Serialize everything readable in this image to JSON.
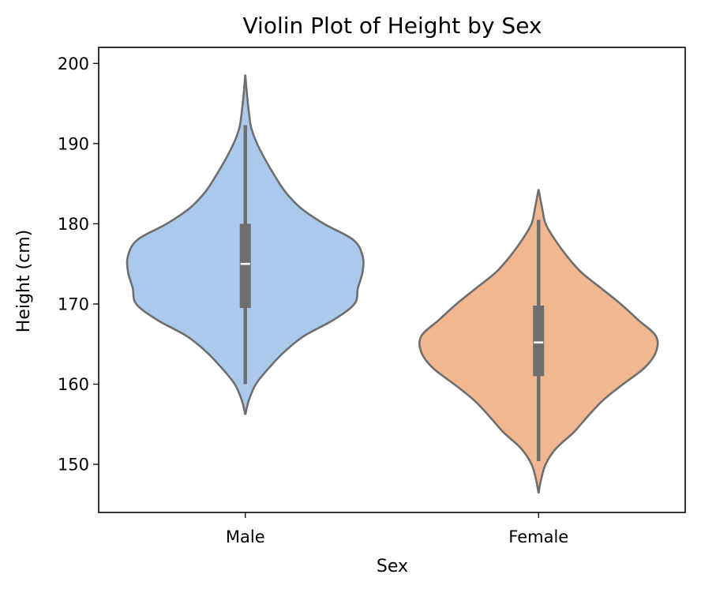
{
  "chart_data": {
    "type": "violin",
    "title": "Violin Plot of Height by Sex",
    "xlabel": "Sex",
    "ylabel": "Height (cm)",
    "ylim": [
      144,
      202
    ],
    "yticks": [
      150,
      160,
      170,
      180,
      190,
      200
    ],
    "categories": [
      "Male",
      "Female"
    ],
    "grid": false,
    "colors": {
      "Male": "#abc9ec",
      "Female": "#f1b791",
      "outline": "#6e6e6e"
    },
    "series": [
      {
        "category": "Male",
        "median": 175,
        "q1": 169.5,
        "q3": 180,
        "whisker_low": 160,
        "whisker_high": 192.3,
        "kde_min": 156.2,
        "kde_max": 198.6,
        "density": [
          [
            156.2,
            0.0
          ],
          [
            158,
            0.03
          ],
          [
            160,
            0.09
          ],
          [
            162,
            0.2
          ],
          [
            164,
            0.33
          ],
          [
            166,
            0.5
          ],
          [
            168,
            0.75
          ],
          [
            170,
            0.93
          ],
          [
            172,
            0.96
          ],
          [
            174,
            1.0
          ],
          [
            176,
            1.0
          ],
          [
            178,
            0.92
          ],
          [
            180,
            0.67
          ],
          [
            182,
            0.47
          ],
          [
            184,
            0.34
          ],
          [
            186,
            0.25
          ],
          [
            188,
            0.17
          ],
          [
            190,
            0.1
          ],
          [
            192,
            0.05
          ],
          [
            194,
            0.03
          ],
          [
            196,
            0.015
          ],
          [
            198.6,
            0.0
          ]
        ]
      },
      {
        "category": "Female",
        "median": 165.2,
        "q1": 161,
        "q3": 169.8,
        "whisker_low": 150.4,
        "whisker_high": 180.5,
        "kde_min": 146.4,
        "kde_max": 184.3,
        "density": [
          [
            146.4,
            0.0
          ],
          [
            148,
            0.02
          ],
          [
            150,
            0.06
          ],
          [
            152,
            0.15
          ],
          [
            154,
            0.3
          ],
          [
            156,
            0.42
          ],
          [
            158,
            0.55
          ],
          [
            160,
            0.72
          ],
          [
            162,
            0.9
          ],
          [
            164,
            1.0
          ],
          [
            166,
            1.0
          ],
          [
            168,
            0.85
          ],
          [
            170,
            0.7
          ],
          [
            172,
            0.53
          ],
          [
            174,
            0.36
          ],
          [
            176,
            0.24
          ],
          [
            178,
            0.14
          ],
          [
            180,
            0.06
          ],
          [
            182,
            0.03
          ],
          [
            184.3,
            0.0
          ]
        ]
      }
    ]
  }
}
